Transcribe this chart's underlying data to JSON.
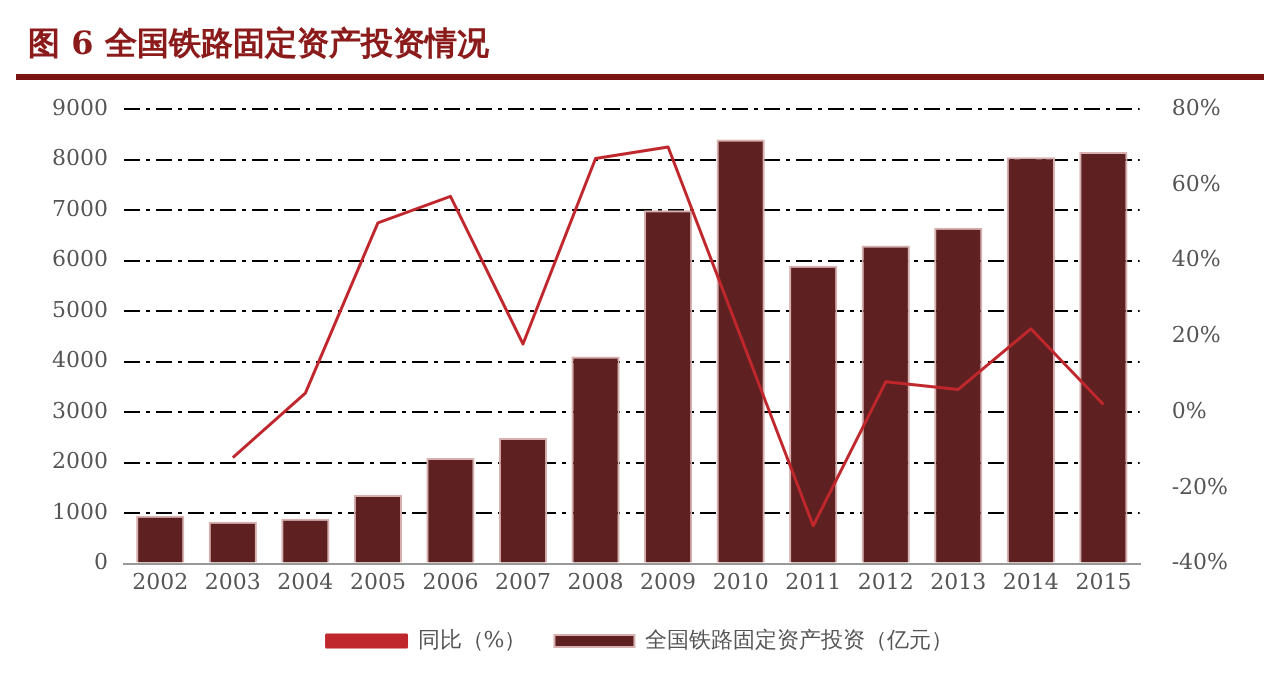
{
  "chart_data": {
    "type": "bar",
    "title": "图 6 全国铁路固定资产投资情况",
    "categories": [
      "2002",
      "2003",
      "2004",
      "2005",
      "2006",
      "2007",
      "2008",
      "2009",
      "2010",
      "2011",
      "2012",
      "2013",
      "2014",
      "2015"
    ],
    "series": [
      {
        "name": "全国铁路固定资产投资（亿元）",
        "color": "#5e2020",
        "values": [
          950,
          830,
          890,
          1360,
          2090,
          2490,
          4100,
          7000,
          8400,
          5900,
          6300,
          6650,
          8050,
          8150
        ]
      },
      {
        "name": "同比（%）",
        "type": "line",
        "axis": "y2",
        "color": "#c0272d",
        "values": [
          null,
          -12,
          5,
          50,
          57,
          18,
          67,
          70,
          20,
          -30,
          8,
          6,
          22,
          2
        ]
      }
    ],
    "ylim": [
      0,
      9000
    ],
    "yticks": [
      0,
      1000,
      2000,
      3000,
      4000,
      5000,
      6000,
      7000,
      8000,
      9000
    ],
    "y2lim": [
      -40,
      80
    ],
    "y2ticks": [
      {
        "value": -40,
        "label": "-40%"
      },
      {
        "value": -20,
        "label": "-20%"
      },
      {
        "value": 0,
        "label": "0%"
      },
      {
        "value": 20,
        "label": "20%"
      },
      {
        "value": 40,
        "label": "40%"
      },
      {
        "value": 60,
        "label": "60%"
      },
      {
        "value": 80,
        "label": "80%"
      }
    ],
    "grid": "y",
    "legend": "bottom",
    "marker": "none",
    "line_style": "solid"
  }
}
